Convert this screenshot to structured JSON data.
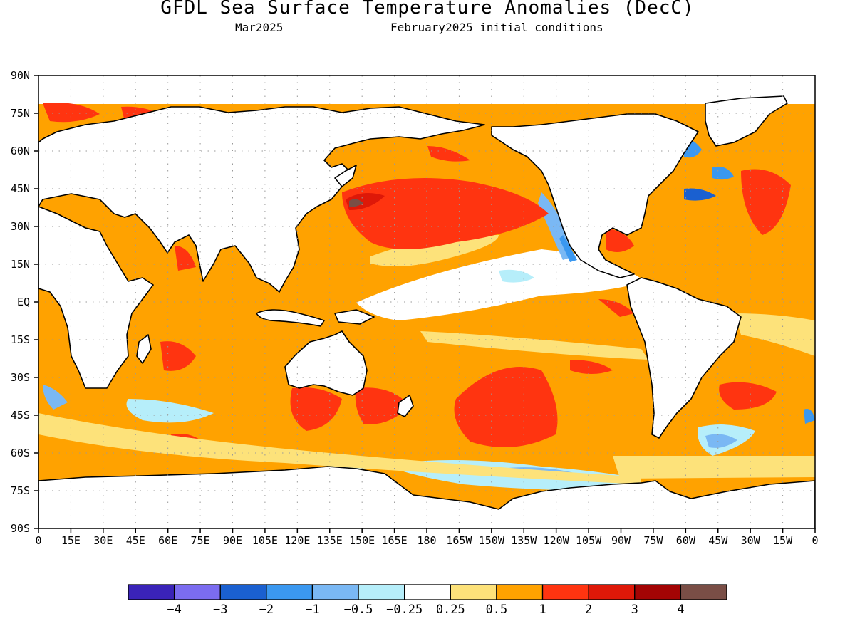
{
  "title": "GFDL Sea Surface Temperature Anomalies (DecC)",
  "subtitle_left": "Mar2025",
  "subtitle_right": "February2025 initial conditions",
  "map": {
    "lat_labels": [
      "90N",
      "75N",
      "60N",
      "45N",
      "30N",
      "15N",
      "EQ",
      "15S",
      "30S",
      "45S",
      "60S",
      "75S",
      "90S"
    ],
    "lon_labels": [
      "0",
      "15E",
      "30E",
      "45E",
      "60E",
      "75E",
      "90E",
      "105E",
      "120E",
      "135E",
      "150E",
      "165E",
      "180",
      "165W",
      "150W",
      "135W",
      "120W",
      "105W",
      "90W",
      "75W",
      "60W",
      "45W",
      "30W",
      "15W",
      "0"
    ],
    "lon_range": [
      0,
      360
    ],
    "lat_range": [
      -90,
      90
    ],
    "grid": "dotted"
  },
  "colorbar": {
    "colors": [
      "#3a23b8",
      "#7b6cf0",
      "#1a60d0",
      "#3b98f0",
      "#7ab8f4",
      "#b6eefa",
      "#ffffff",
      "#fde27a",
      "#ffa200",
      "#ff3410",
      "#de1808",
      "#a30404",
      "#7a4e46"
    ],
    "labels": [
      "−4",
      "−3",
      "−2",
      "−1",
      "−0.5",
      "−0.25",
      "0.25",
      "0.5",
      "1",
      "2",
      "3",
      "4"
    ]
  }
}
